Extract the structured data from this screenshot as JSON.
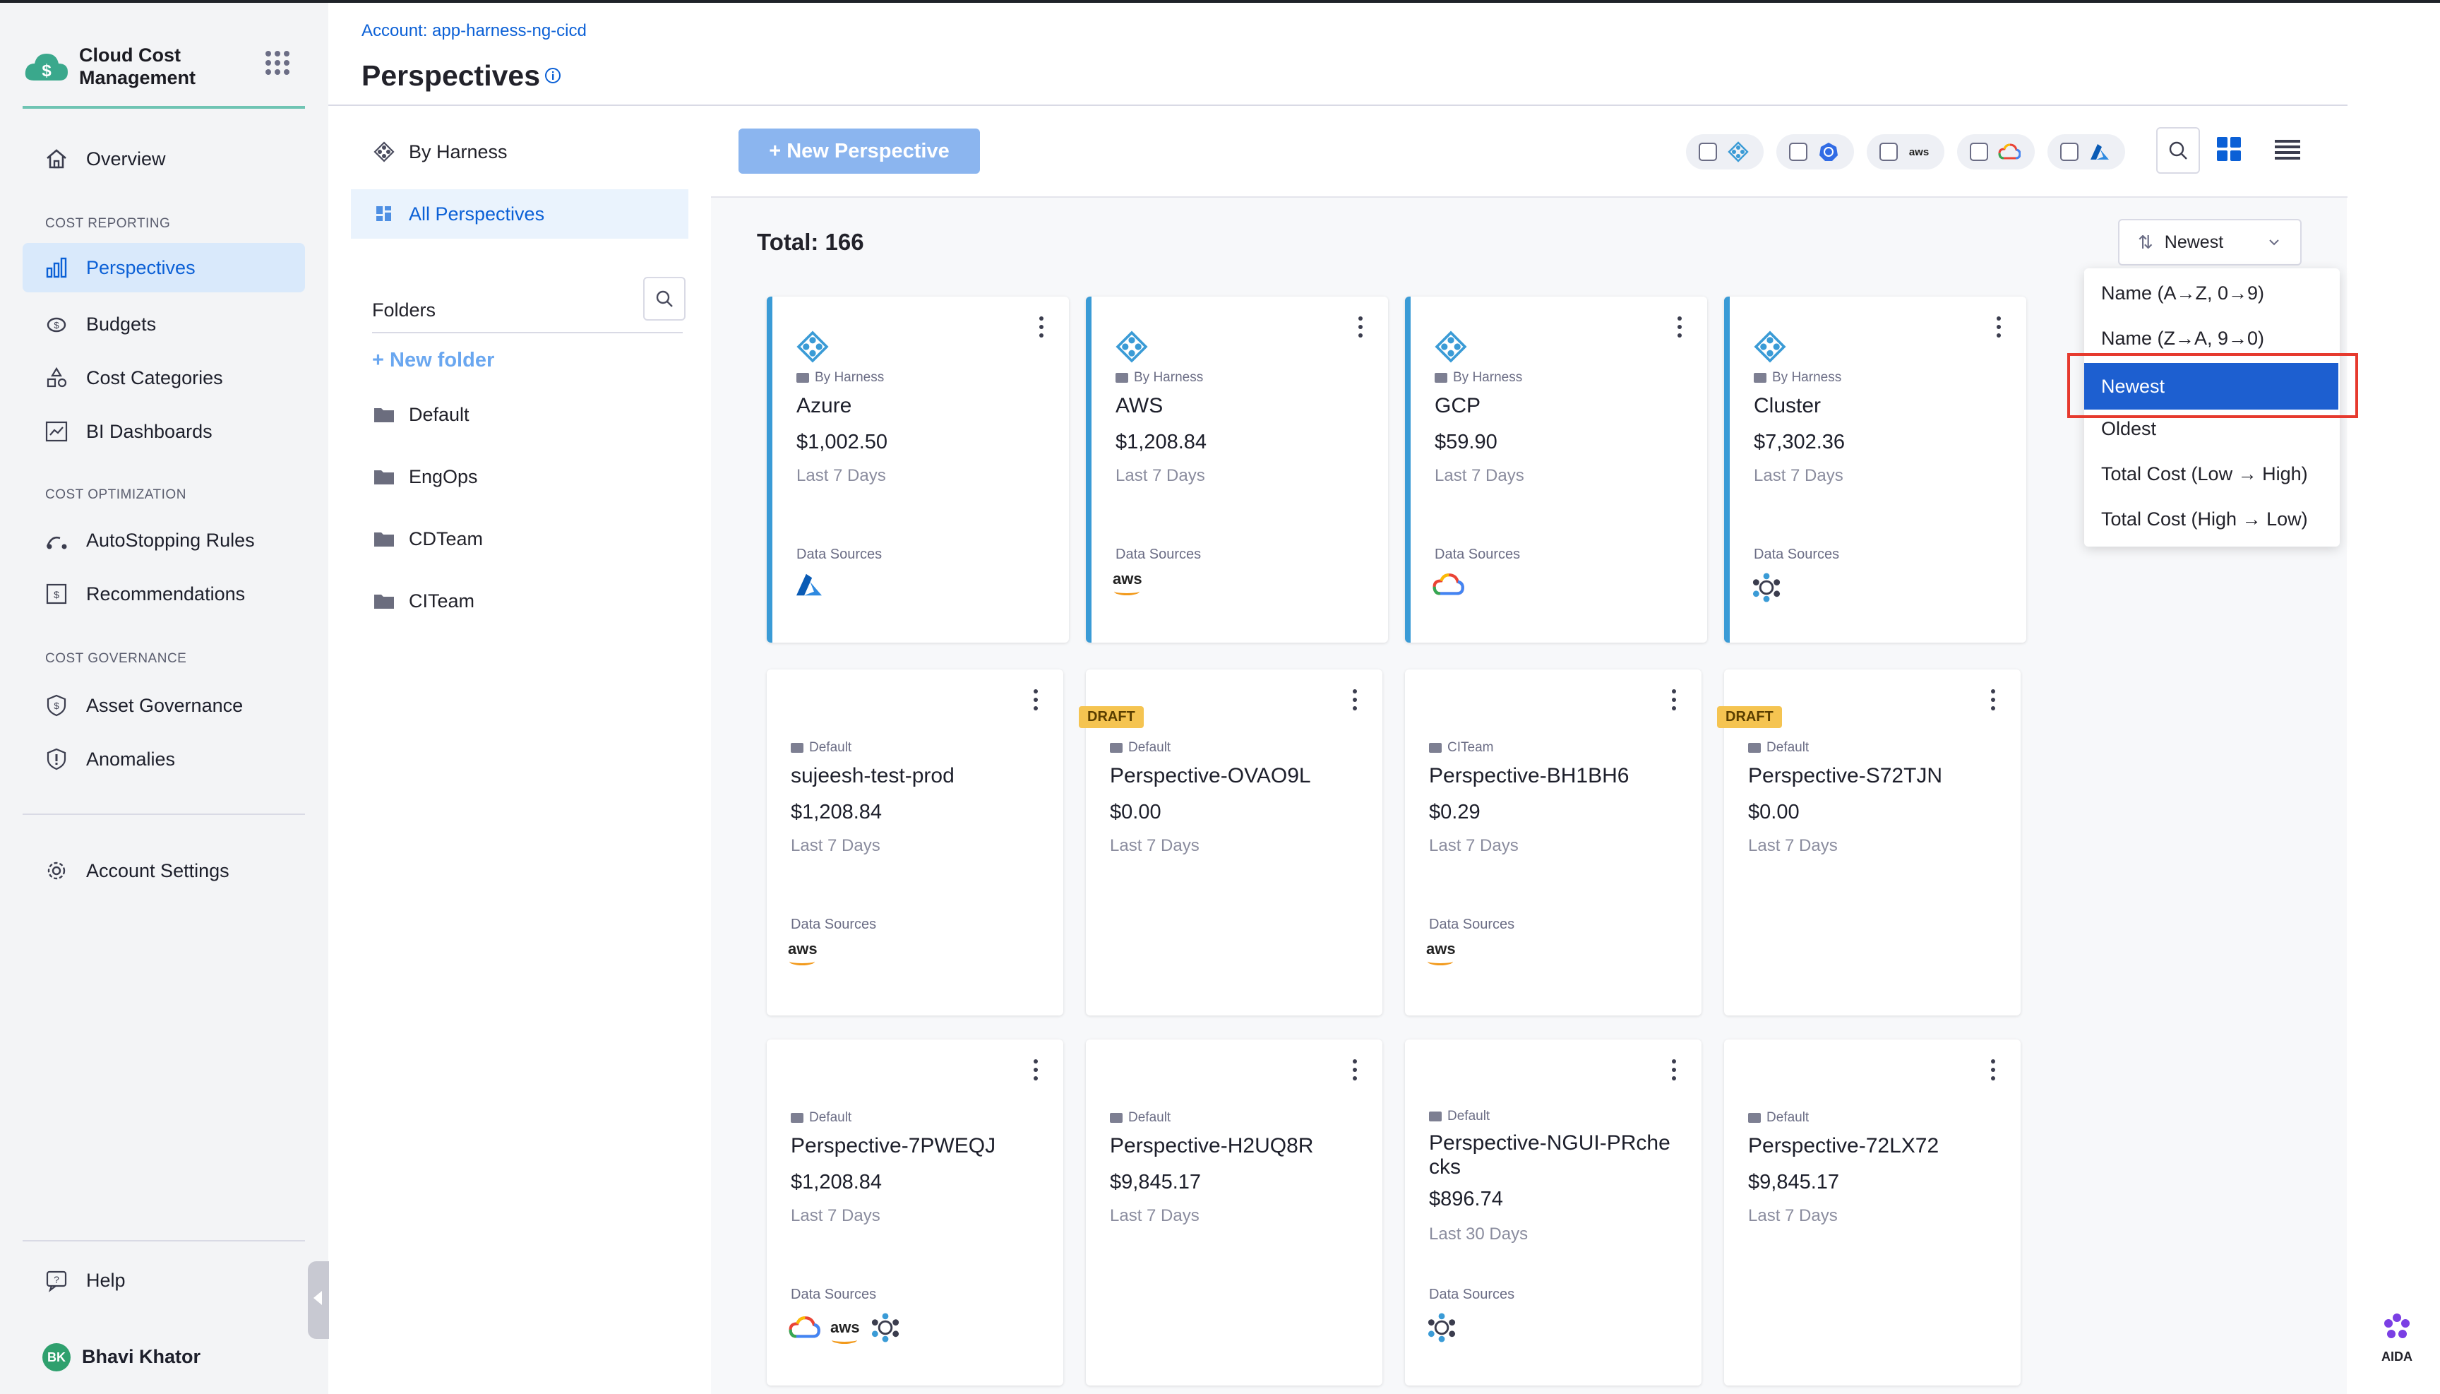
{
  "app": {
    "name": "Cloud Cost Management",
    "logo": "cloud-dollar-icon"
  },
  "sidebar": {
    "top": [
      {
        "label": "Overview",
        "icon": "home-icon"
      }
    ],
    "sections": [
      {
        "title": "COST REPORTING",
        "items": [
          {
            "label": "Perspectives",
            "icon": "chart-icon",
            "active": true
          },
          {
            "label": "Budgets",
            "icon": "piggy-bank-icon"
          },
          {
            "label": "Cost Categories",
            "icon": "shapes-icon"
          },
          {
            "label": "BI Dashboards",
            "icon": "dashboard-icon"
          }
        ]
      },
      {
        "title": "COST OPTIMIZATION",
        "items": [
          {
            "label": "AutoStopping Rules",
            "icon": "autostop-icon"
          },
          {
            "label": "Recommendations",
            "icon": "recommendation-icon"
          }
        ]
      },
      {
        "title": "COST GOVERNANCE",
        "items": [
          {
            "label": "Asset Governance",
            "icon": "shield-dollar-icon"
          },
          {
            "label": "Anomalies",
            "icon": "alert-shield-icon"
          }
        ]
      }
    ],
    "account_settings": "Account Settings",
    "help": "Help",
    "user": {
      "initials": "BK",
      "name": "Bhavi Khator"
    }
  },
  "header": {
    "account": "Account: app-harness-ng-cicd",
    "title": "Perspectives"
  },
  "folders_panel": {
    "by_harness": "By Harness",
    "all_perspectives": "All Perspectives",
    "folders_label": "Folders",
    "new_folder": "New folder",
    "folders": [
      "Default",
      "EngOps",
      "CDTeam",
      "CITeam"
    ]
  },
  "toolbar": {
    "new_perspective": "New Perspective",
    "filters": [
      {
        "name": "harness",
        "icon": "harness-icon"
      },
      {
        "name": "cluster",
        "icon": "kubernetes-icon"
      },
      {
        "name": "aws",
        "icon": "aws-icon",
        "label": "aws"
      },
      {
        "name": "gcp",
        "icon": "gcp-icon"
      },
      {
        "name": "azure",
        "icon": "azure-icon"
      }
    ]
  },
  "list": {
    "total": "Total: 166",
    "sort": {
      "selected": "Newest",
      "options": [
        "Name (A→Z, 0→9)",
        "Name (Z→A, 9→0)",
        "Newest",
        "Oldest",
        "Total Cost (Low → High)",
        "Total Cost (High → Low)"
      ]
    },
    "data_sources_label": "Data Sources",
    "draft_label": "DRAFT",
    "cards": [
      {
        "folder": "By Harness",
        "name": "Azure",
        "cost": "$1,002.50",
        "period": "Last 7 Days",
        "sources": [
          "azure"
        ],
        "harness": true
      },
      {
        "folder": "By Harness",
        "name": "AWS",
        "cost": "$1,208.84",
        "period": "Last 7 Days",
        "sources": [
          "aws"
        ],
        "harness": true
      },
      {
        "folder": "By Harness",
        "name": "GCP",
        "cost": "$59.90",
        "period": "Last 7 Days",
        "sources": [
          "gcp"
        ],
        "harness": true
      },
      {
        "folder": "By Harness",
        "name": "Cluster",
        "cost": "$7,302.36",
        "period": "Last 7 Days",
        "sources": [
          "cluster"
        ],
        "harness": true
      },
      {
        "folder": "Default",
        "name": "sujeesh-test-prod",
        "cost": "$1,208.84",
        "period": "Last 7 Days",
        "sources": [
          "aws"
        ]
      },
      {
        "folder": "Default",
        "name": "Perspective-OVAO9L",
        "cost": "$0.00",
        "period": "Last 7 Days",
        "sources": [],
        "draft": true
      },
      {
        "folder": "CITeam",
        "name": "Perspective-BH1BH6",
        "cost": "$0.29",
        "period": "Last 7 Days",
        "sources": [
          "aws"
        ]
      },
      {
        "folder": "Default",
        "name": "Perspective-S72TJN",
        "cost": "$0.00",
        "period": "Last 7 Days",
        "sources": [],
        "draft": true
      },
      {
        "folder": "Default",
        "name": "Perspective-7PWEQJ",
        "cost": "$1,208.84",
        "period": "Last 7 Days",
        "sources": [
          "gcp",
          "aws",
          "cluster"
        ]
      },
      {
        "folder": "Default",
        "name": "Perspective-H2UQ8R",
        "cost": "$9,845.17",
        "period": "Last 7 Days",
        "sources": []
      },
      {
        "folder": "Default",
        "name": "Perspective-NGUI-PRchecks",
        "name_lines": [
          "Perspective-NGUI-PRche",
          "cks"
        ],
        "cost": "$896.74",
        "period": "Last 30 Days",
        "sources": [
          "cluster"
        ]
      },
      {
        "folder": "Default",
        "name": "Perspective-72LX72",
        "cost": "$9,845.17",
        "period": "Last 7 Days",
        "sources": []
      }
    ]
  },
  "aida": {
    "label": "AIDA"
  },
  "colors": {
    "accent": "#0b60d6",
    "harness_border": "#3a9bd6",
    "draft": "#f5c451",
    "highlight": "#e63a2e"
  }
}
